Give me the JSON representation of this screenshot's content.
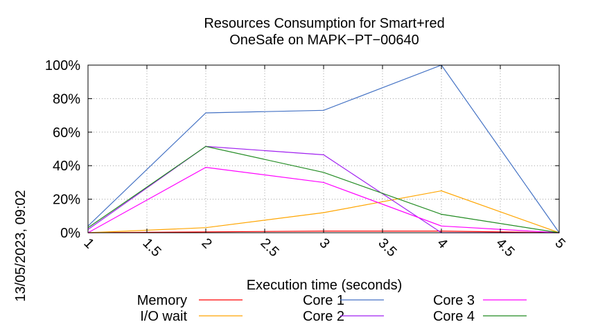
{
  "timestamp": "13/05/2023, 09:02",
  "chart_data": {
    "type": "line",
    "title_lines": [
      "Resources Consumption for Smart+red",
      "OneSafe on MAPK−PT−00640"
    ],
    "xlabel": "Execution time (seconds)",
    "ylabel": "",
    "xlim": [
      1,
      5
    ],
    "ylim": [
      0,
      100
    ],
    "x_ticks": [
      "1",
      "1.5",
      "2",
      "2.5",
      "3",
      "3.5",
      "4",
      "4.5",
      "5"
    ],
    "y_ticks": [
      "0%",
      "20%",
      "40%",
      "60%",
      "80%",
      "100%"
    ],
    "grid": true,
    "legend_position": "bottom",
    "x": [
      1,
      2,
      3,
      4,
      5
    ],
    "series": [
      {
        "name": "Memory",
        "color": "#ff0000",
        "values": [
          0,
          0.5,
          1,
          1,
          0
        ]
      },
      {
        "name": "I/O wait",
        "color": "#ffa500",
        "values": [
          0,
          3,
          12,
          25,
          0
        ]
      },
      {
        "name": "Core 1",
        "color": "#4472c4",
        "values": [
          4,
          71.5,
          73,
          100,
          0
        ]
      },
      {
        "name": "Core 2",
        "color": "#a020f0",
        "values": [
          2,
          51.5,
          46.5,
          0,
          0
        ]
      },
      {
        "name": "Core 3",
        "color": "#ff00ff",
        "values": [
          0,
          39,
          30,
          4,
          0
        ]
      },
      {
        "name": "Core 4",
        "color": "#228b22",
        "values": [
          3,
          51.5,
          36,
          11,
          0
        ]
      }
    ]
  }
}
